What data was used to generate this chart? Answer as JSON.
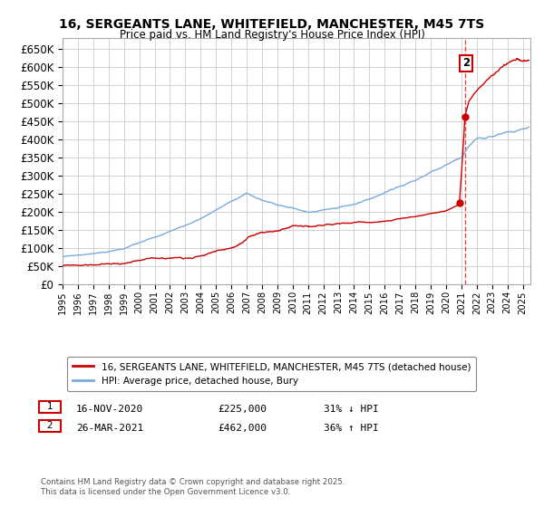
{
  "title": "16, SERGEANTS LANE, WHITEFIELD, MANCHESTER, M45 7TS",
  "subtitle": "Price paid vs. HM Land Registry's House Price Index (HPI)",
  "background_color": "#ffffff",
  "grid_color": "#cccccc",
  "hpi_color": "#7aabdc",
  "price_color": "#cc0000",
  "ylim": [
    0,
    680000
  ],
  "ytick_step": 50000,
  "xmin": 1995,
  "xmax": 2025.5,
  "sale1": {
    "date_num": 2020.877,
    "price": 225000
  },
  "sale2": {
    "date_num": 2021.24,
    "price": 462000
  },
  "vline_x": 2021.24,
  "legend_entries": [
    "16, SERGEANTS LANE, WHITEFIELD, MANCHESTER, M45 7TS (detached house)",
    "HPI: Average price, detached house, Bury"
  ],
  "copyright": "Contains HM Land Registry data © Crown copyright and database right 2025.\nThis data is licensed under the Open Government Licence v3.0."
}
